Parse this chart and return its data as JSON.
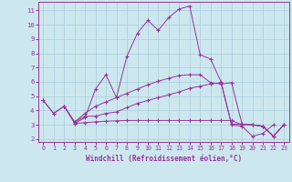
{
  "xlabel": "Windchill (Refroidissement éolien,°C)",
  "background_color": "#cce8ee",
  "grid_color": "#aaccdd",
  "line_color": "#993399",
  "xlim": [
    -0.5,
    23.5
  ],
  "ylim": [
    1.8,
    11.6
  ],
  "xticks": [
    0,
    1,
    2,
    3,
    4,
    5,
    6,
    7,
    8,
    9,
    10,
    11,
    12,
    13,
    14,
    15,
    16,
    17,
    18,
    19,
    20,
    21,
    22,
    23
  ],
  "yticks": [
    2,
    3,
    4,
    5,
    6,
    7,
    8,
    9,
    10,
    11
  ],
  "curve1_x": [
    0,
    1,
    2,
    3,
    4,
    5,
    6,
    7,
    8,
    9,
    10,
    11,
    12,
    13,
    14,
    15,
    16,
    17,
    18,
    19,
    20,
    21,
    22
  ],
  "curve1_y": [
    4.7,
    3.8,
    4.3,
    3.1,
    3.5,
    5.5,
    6.5,
    4.9,
    7.8,
    9.4,
    10.3,
    9.6,
    10.5,
    11.1,
    11.3,
    7.9,
    7.6,
    6.0,
    3.0,
    2.9,
    2.2,
    2.4,
    3.0
  ],
  "curve2_x": [
    0,
    1,
    2,
    3,
    4,
    5,
    6,
    7,
    8,
    9,
    10,
    11,
    12,
    13,
    14,
    15,
    16,
    17,
    18,
    19,
    20,
    21,
    22,
    23
  ],
  "curve2_y": [
    4.7,
    3.8,
    4.3,
    3.2,
    3.6,
    3.6,
    3.8,
    3.9,
    4.2,
    4.5,
    4.7,
    4.9,
    5.1,
    5.3,
    5.55,
    5.7,
    5.85,
    5.95,
    3.05,
    3.05,
    3.0,
    2.9,
    2.2,
    3.0
  ],
  "curve3_x": [
    3,
    4,
    5,
    6,
    7,
    8,
    9,
    10,
    11,
    12,
    13,
    14,
    15,
    16,
    17,
    18,
    19,
    20,
    21,
    22,
    23
  ],
  "curve3_y": [
    3.1,
    3.15,
    3.2,
    3.25,
    3.28,
    3.3,
    3.3,
    3.3,
    3.3,
    3.3,
    3.3,
    3.3,
    3.3,
    3.3,
    3.3,
    3.3,
    3.0,
    3.0,
    2.9,
    2.2,
    3.0
  ],
  "curve4_x": [
    2,
    3,
    4,
    5,
    6,
    7,
    8,
    9,
    10,
    11,
    12,
    13,
    14,
    15,
    16,
    17,
    18,
    19,
    20,
    21,
    22,
    23
  ],
  "curve4_y": [
    4.3,
    3.2,
    3.8,
    4.3,
    4.6,
    4.9,
    5.2,
    5.5,
    5.8,
    6.05,
    6.25,
    6.45,
    6.5,
    6.5,
    5.95,
    5.85,
    5.95,
    3.05,
    3.0,
    2.9,
    2.2,
    3.0
  ]
}
